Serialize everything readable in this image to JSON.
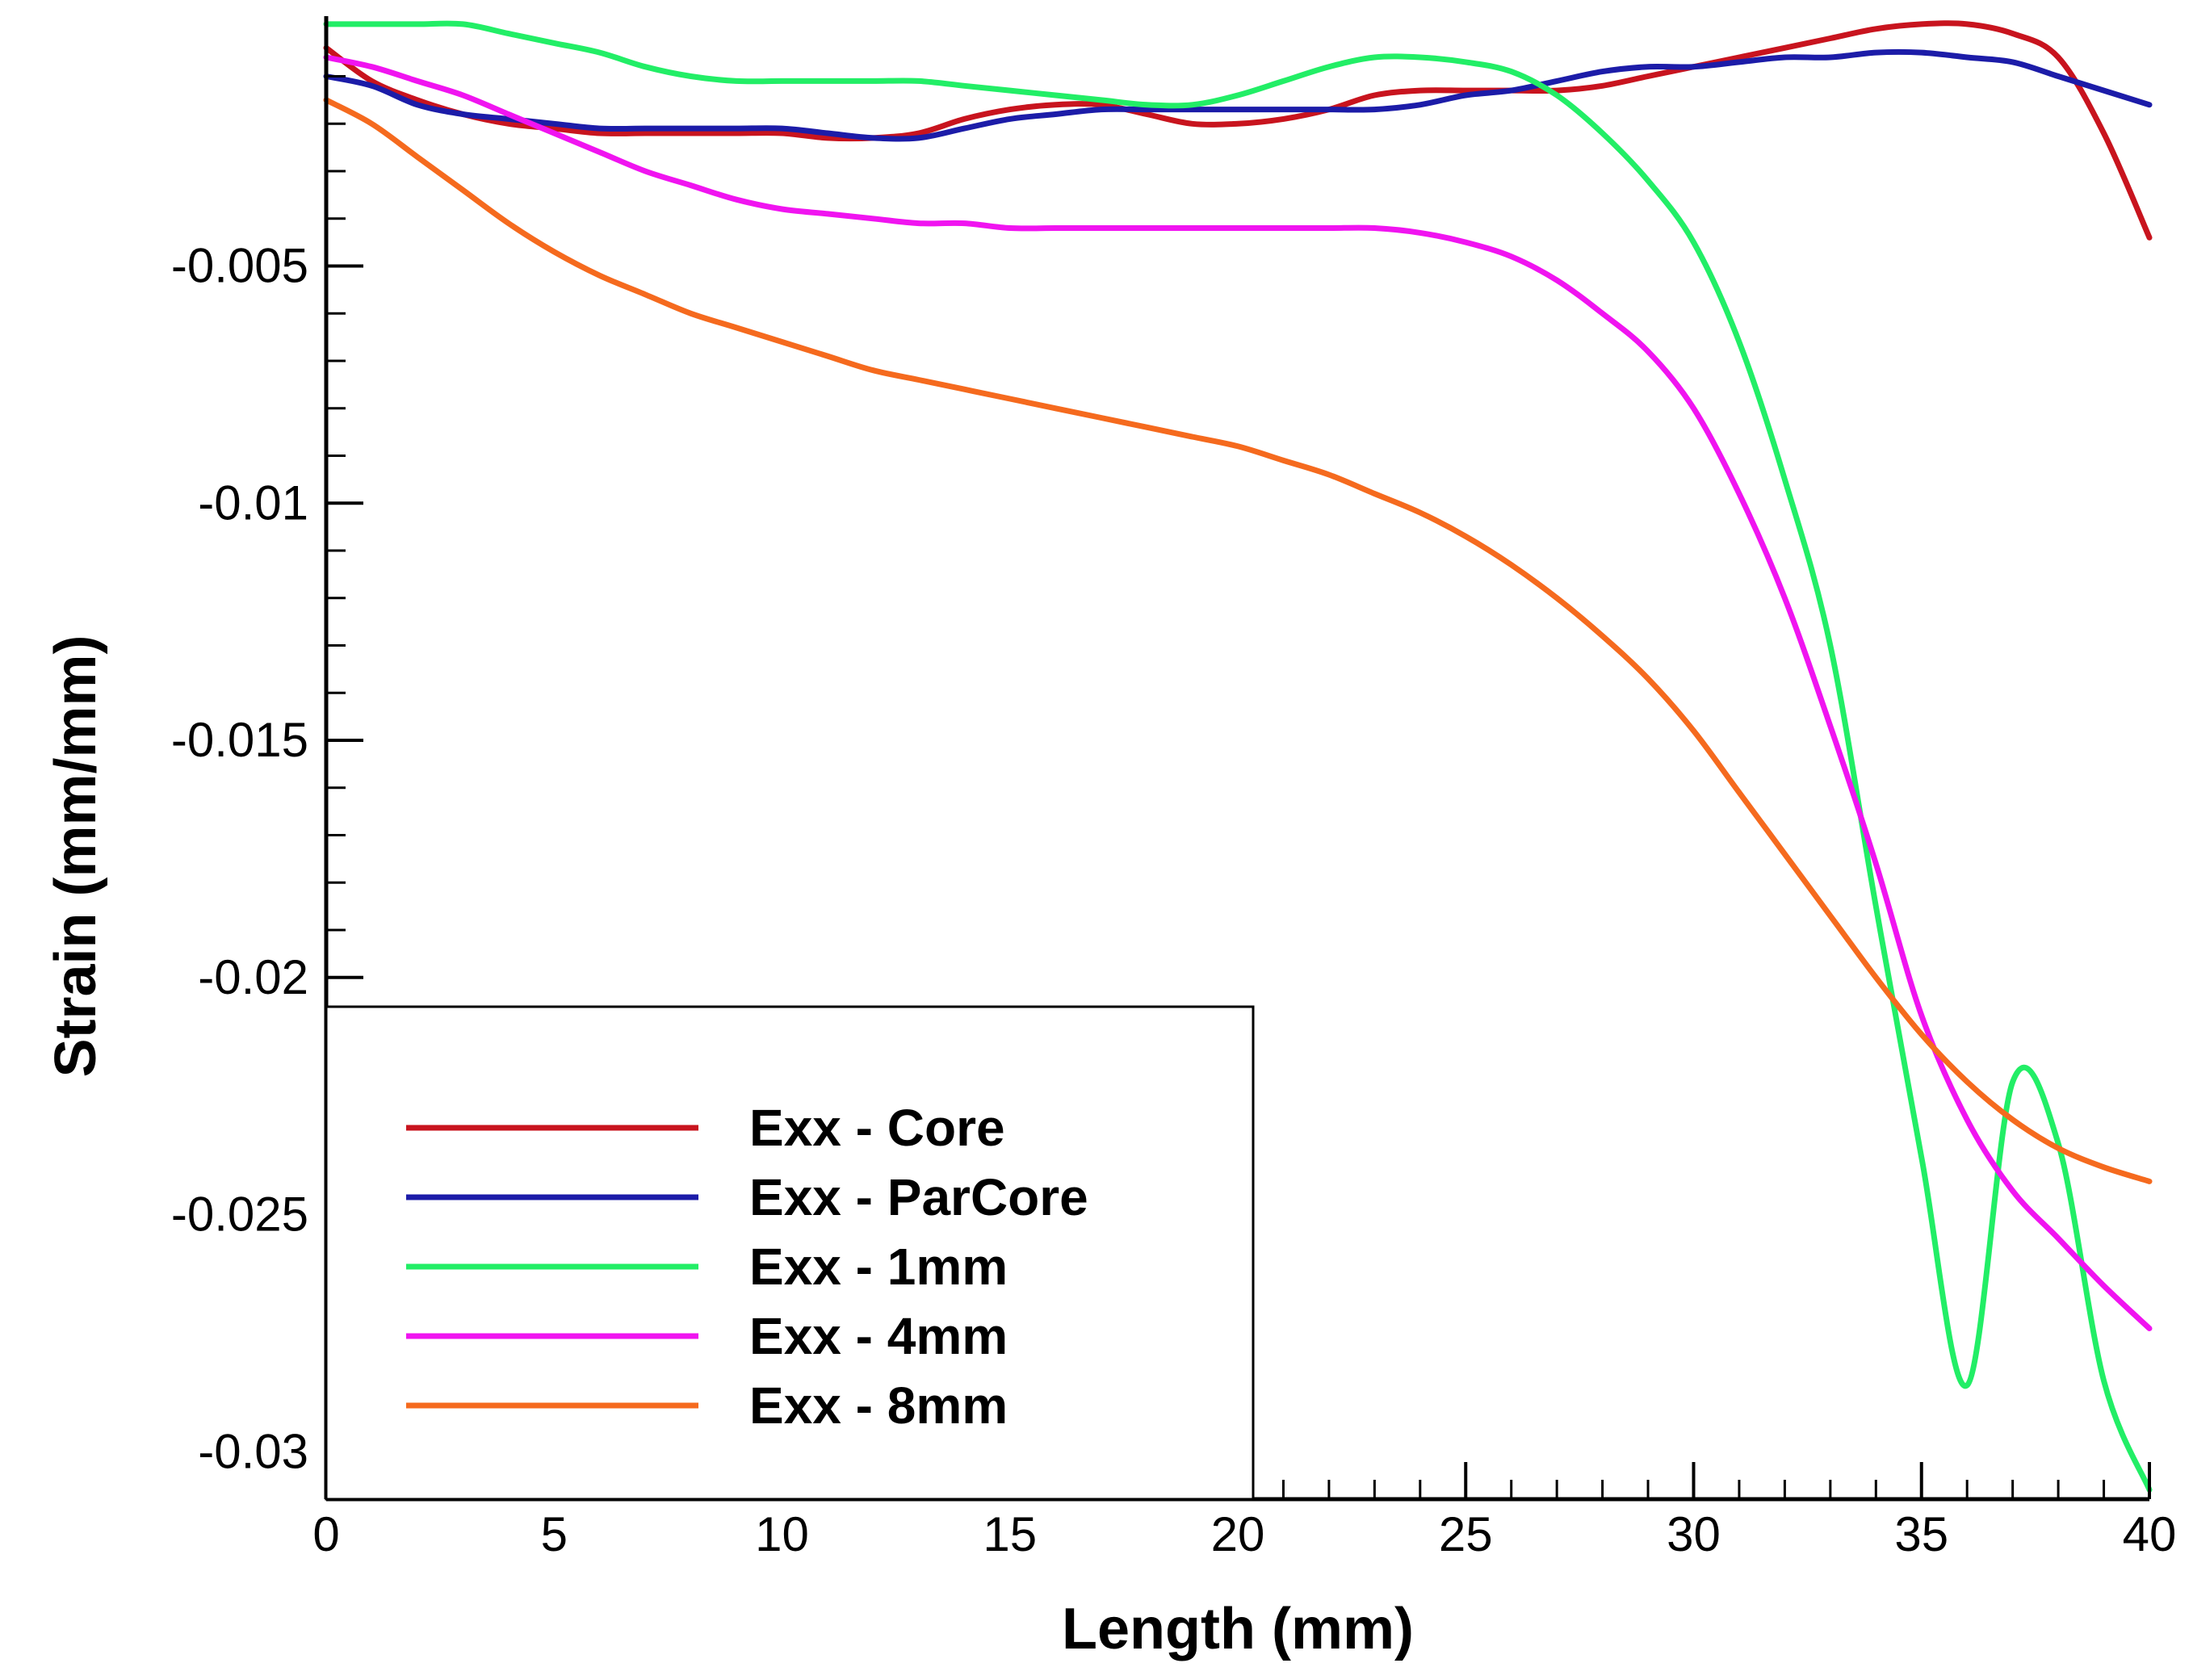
{
  "chart_data": {
    "type": "line",
    "title": "",
    "xlabel": "Length (mm)",
    "ylabel": "Strain (mm/mm)",
    "xlim": [
      0,
      40
    ],
    "ylim": [
      -0.031,
      0.0002
    ],
    "grid": false,
    "legend_position": "bottom-left",
    "x_ticks": [
      0,
      5,
      10,
      15,
      20,
      25,
      30,
      35,
      40
    ],
    "x_tick_labels": [
      "0",
      "5",
      "10",
      "15",
      "20",
      "25",
      "30",
      "35",
      "40"
    ],
    "y_ticks": [
      -0.005,
      -0.01,
      -0.015,
      -0.02,
      -0.025,
      -0.03
    ],
    "y_tick_labels": [
      "-0.005",
      "-0.01",
      "-0.015",
      "-0.02",
      "-0.025",
      "-0.03"
    ],
    "x_minor_step": 1,
    "y_minor_step": 0.001,
    "series": [
      {
        "name": "Exx - Core",
        "color": "#c8141e",
        "x": [
          0,
          1,
          2,
          3,
          4,
          5,
          6,
          7,
          8,
          9,
          10,
          11,
          12,
          13,
          14,
          15,
          16,
          17,
          18,
          19,
          20,
          21,
          22,
          23,
          24,
          25,
          26,
          27,
          28,
          29,
          30,
          31,
          32,
          33,
          34,
          35,
          36,
          37,
          38,
          39,
          40
        ],
        "y": [
          -0.0004,
          -0.0011,
          -0.0015,
          -0.0018,
          -0.002,
          -0.0021,
          -0.0022,
          -0.0022,
          -0.0022,
          -0.0022,
          -0.0022,
          -0.0023,
          -0.0023,
          -0.0022,
          -0.0019,
          -0.0017,
          -0.0016,
          -0.0016,
          -0.0018,
          -0.002,
          -0.002,
          -0.0019,
          -0.0017,
          -0.0014,
          -0.0013,
          -0.0013,
          -0.0013,
          -0.0013,
          -0.0012,
          -0.001,
          -0.0008,
          -0.0006,
          -0.0004,
          -0.0002,
          0.0,
          0.0001,
          0.0001,
          -0.0001,
          -0.0006,
          -0.0022,
          -0.0044
        ]
      },
      {
        "name": "Exx - ParCore",
        "color": "#1c1ca8",
        "x": [
          0,
          1,
          2,
          3,
          4,
          5,
          6,
          7,
          8,
          9,
          10,
          11,
          12,
          13,
          14,
          15,
          16,
          17,
          18,
          19,
          20,
          21,
          22,
          23,
          24,
          25,
          26,
          27,
          28,
          29,
          30,
          31,
          32,
          33,
          34,
          35,
          36,
          37,
          38,
          39,
          40
        ],
        "y": [
          -0.001,
          -0.0012,
          -0.0016,
          -0.0018,
          -0.0019,
          -0.002,
          -0.0021,
          -0.0021,
          -0.0021,
          -0.0021,
          -0.0021,
          -0.0022,
          -0.0023,
          -0.0023,
          -0.0021,
          -0.0019,
          -0.0018,
          -0.0017,
          -0.0017,
          -0.0017,
          -0.0017,
          -0.0017,
          -0.0017,
          -0.0017,
          -0.0016,
          -0.0014,
          -0.0013,
          -0.0011,
          -0.0009,
          -0.0008,
          -0.0008,
          -0.0007,
          -0.0006,
          -0.0006,
          -0.0005,
          -0.0005,
          -0.0006,
          -0.0007,
          -0.001,
          -0.0013,
          -0.0016
        ]
      },
      {
        "name": "Exx - 1mm",
        "color": "#22ee66",
        "x": [
          0,
          1,
          2,
          3,
          4,
          5,
          6,
          7,
          8,
          9,
          10,
          11,
          12,
          13,
          14,
          15,
          16,
          17,
          18,
          19,
          20,
          21,
          22,
          23,
          24,
          25,
          26,
          27,
          28,
          29,
          30,
          31,
          32,
          33,
          34,
          35,
          36,
          37,
          38,
          39,
          40
        ],
        "y": [
          0.0001,
          0.0001,
          0.0001,
          0.0001,
          -0.0001,
          -0.0003,
          -0.0005,
          -0.0008,
          -0.001,
          -0.0011,
          -0.0011,
          -0.0011,
          -0.0011,
          -0.0011,
          -0.0012,
          -0.0013,
          -0.0014,
          -0.0015,
          -0.0016,
          -0.0016,
          -0.0014,
          -0.0011,
          -0.0008,
          -0.0006,
          -0.0006,
          -0.0007,
          -0.0009,
          -0.0014,
          -0.0022,
          -0.0032,
          -0.0045,
          -0.0066,
          -0.0095,
          -0.013,
          -0.0185,
          -0.0238,
          -0.0286,
          -0.0222,
          -0.0235,
          -0.0285,
          -0.0308
        ]
      },
      {
        "name": "Exx - 4mm",
        "color": "#f014f0",
        "x": [
          0,
          1,
          2,
          3,
          4,
          5,
          6,
          7,
          8,
          9,
          10,
          11,
          12,
          13,
          14,
          15,
          16,
          17,
          18,
          19,
          20,
          21,
          22,
          23,
          24,
          25,
          26,
          27,
          28,
          29,
          30,
          31,
          32,
          33,
          34,
          35,
          36,
          37,
          38,
          39,
          40
        ],
        "y": [
          -0.0006,
          -0.0008,
          -0.0011,
          -0.0014,
          -0.0018,
          -0.0022,
          -0.0026,
          -0.003,
          -0.0033,
          -0.0036,
          -0.0038,
          -0.0039,
          -0.004,
          -0.0041,
          -0.0041,
          -0.0042,
          -0.0042,
          -0.0042,
          -0.0042,
          -0.0042,
          -0.0042,
          -0.0042,
          -0.0042,
          -0.0042,
          -0.0043,
          -0.0045,
          -0.0048,
          -0.0053,
          -0.006,
          -0.0068,
          -0.008,
          -0.0098,
          -0.012,
          -0.0147,
          -0.0176,
          -0.0208,
          -0.023,
          -0.0245,
          -0.0255,
          -0.0265,
          -0.0274
        ]
      },
      {
        "name": "Exx - 8mm",
        "color": "#f56a1e",
        "x": [
          0,
          1,
          2,
          3,
          4,
          5,
          6,
          7,
          8,
          9,
          10,
          11,
          12,
          13,
          14,
          15,
          16,
          17,
          18,
          19,
          20,
          21,
          22,
          23,
          24,
          25,
          26,
          27,
          28,
          29,
          30,
          31,
          32,
          33,
          34,
          35,
          36,
          37,
          38,
          39,
          40
        ],
        "y": [
          -0.0015,
          -0.002,
          -0.0027,
          -0.0034,
          -0.0041,
          -0.0047,
          -0.0052,
          -0.0056,
          -0.006,
          -0.0063,
          -0.0066,
          -0.0069,
          -0.0072,
          -0.0074,
          -0.0076,
          -0.0078,
          -0.008,
          -0.0082,
          -0.0084,
          -0.0086,
          -0.0088,
          -0.0091,
          -0.0094,
          -0.0098,
          -0.0102,
          -0.0107,
          -0.0113,
          -0.012,
          -0.0128,
          -0.0137,
          -0.0148,
          -0.0161,
          -0.0174,
          -0.0187,
          -0.02,
          -0.0212,
          -0.0222,
          -0.023,
          -0.0236,
          -0.024,
          -0.0243
        ]
      }
    ]
  }
}
